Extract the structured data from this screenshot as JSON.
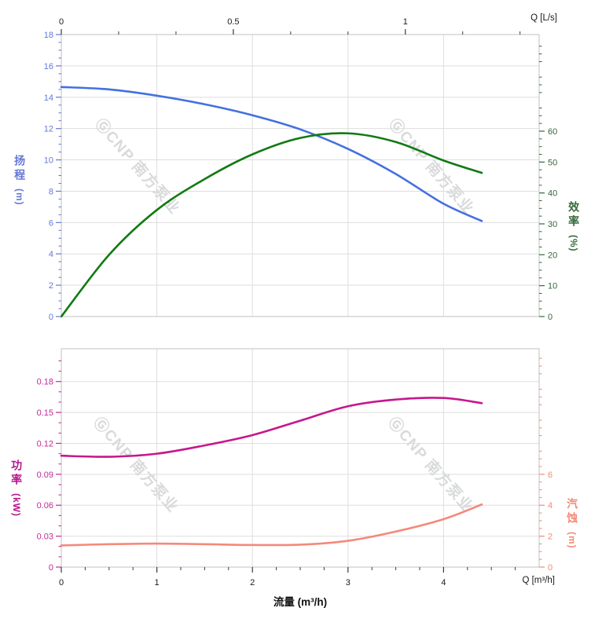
{
  "watermark": {
    "logo": "Ⓖ",
    "text": "CNP 南方泵业",
    "color": "#d9dadb"
  },
  "colors": {
    "head_curve": "#4470e0",
    "head_label": "#6577d6",
    "eff_curve": "#127a12",
    "eff_label": "#35683a",
    "power_curve": "#c6188c",
    "power_label": "#c12a97",
    "npsh_curve": "#f4897b",
    "npsh_label": "#f28a76",
    "grid": "#dedede",
    "frame": "#c2c2c2",
    "x_tick": "#3a3a3a",
    "x_label": "#1a1a1a"
  },
  "axes": {
    "top_x": {
      "label": "Q [L/s]",
      "ticks": [
        0,
        0.5,
        1
      ]
    },
    "bottom_x": {
      "label": "Q [m³/h]",
      "title": "流量 (m³/h)",
      "ticks": [
        0,
        1,
        2,
        3,
        4
      ]
    },
    "head": {
      "title": "扬程",
      "unit": "(m)",
      "ticks": [
        18,
        16,
        14,
        12,
        10,
        8,
        6,
        4,
        2,
        0
      ]
    },
    "eff": {
      "title": "效率",
      "unit": "(%)",
      "ticks": [
        60,
        50,
        40,
        30,
        20,
        10,
        0
      ]
    },
    "power": {
      "title": "功率",
      "unit": "(kW)",
      "ticks": [
        "0.18",
        "0.15",
        "0.12",
        "0.09",
        "0.06",
        "0.03",
        "0"
      ]
    },
    "npsh": {
      "title": "汽蚀",
      "unit": "(m)",
      "ticks": [
        6,
        4,
        2,
        0
      ]
    }
  },
  "chart_data": [
    {
      "type": "line",
      "title": "",
      "x_unit": "m³/h",
      "x_range": [
        0,
        5
      ],
      "x_ticks_Ls": [
        0,
        0.5,
        1
      ],
      "grid": true,
      "series": [
        {
          "name": "head",
          "label": "扬程 (m)",
          "scale": "head",
          "color": "#4470e0",
          "ylim": [
            0,
            18
          ],
          "x": [
            0,
            0.5,
            1,
            1.5,
            2,
            2.5,
            3,
            3.5,
            4,
            4.4
          ],
          "y": [
            14.65,
            14.5,
            14.1,
            13.55,
            12.85,
            11.95,
            10.7,
            9.1,
            7.2,
            6.1
          ]
        },
        {
          "name": "efficiency",
          "label": "效率 (%)",
          "scale": "eff",
          "color": "#127a12",
          "ylim": [
            0,
            60
          ],
          "x": [
            0,
            0.5,
            1,
            1.5,
            2,
            2.5,
            3,
            3.5,
            4,
            4.4
          ],
          "y": [
            0,
            20,
            34.5,
            44.5,
            52.5,
            57.8,
            59.3,
            56.5,
            50.5,
            46.5
          ]
        }
      ]
    },
    {
      "type": "line",
      "title": "",
      "x_unit": "m³/h",
      "x_range": [
        0,
        5
      ],
      "grid": true,
      "series": [
        {
          "name": "power",
          "label": "功率 (kW)",
          "scale": "power",
          "color": "#c6188c",
          "ylim": [
            0,
            0.18
          ],
          "x": [
            0,
            0.5,
            1,
            1.5,
            2,
            2.5,
            3,
            3.5,
            4,
            4.4
          ],
          "y": [
            0.108,
            0.107,
            0.11,
            0.118,
            0.128,
            0.142,
            0.156,
            0.1625,
            0.164,
            0.159
          ]
        },
        {
          "name": "npsh",
          "label": "汽蚀 (m)",
          "scale": "npsh",
          "color": "#f4897b",
          "ylim": [
            0,
            6
          ],
          "x": [
            0,
            0.5,
            1,
            1.5,
            2,
            2.5,
            3,
            3.5,
            4,
            4.4
          ],
          "y": [
            1.4,
            1.48,
            1.52,
            1.48,
            1.43,
            1.45,
            1.7,
            2.3,
            3.1,
            4.05
          ]
        }
      ]
    }
  ]
}
